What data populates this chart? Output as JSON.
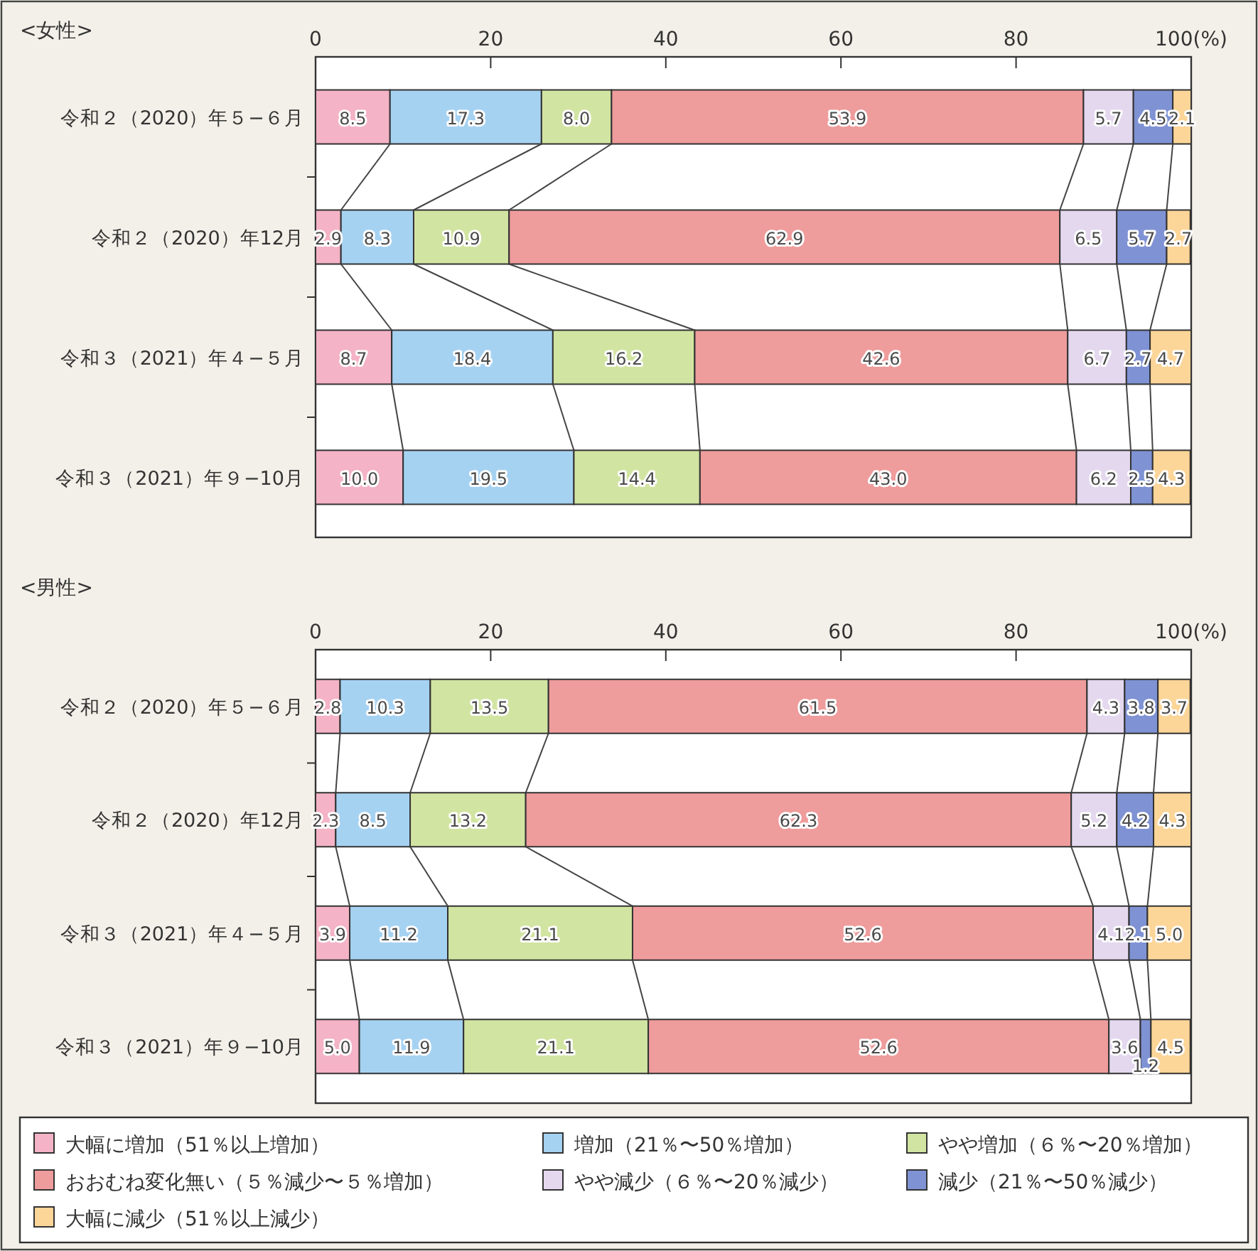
{
  "chart_data": [
    {
      "type": "bar",
      "orientation": "horizontal",
      "stacked": true,
      "title": "<女性>",
      "categories": [
        "令和２（2020）年５−６月",
        "令和２（2020）年12月",
        "令和３（2021）年４−５月",
        "令和３（2021）年９−10月"
      ],
      "xlim": [
        0,
        100
      ],
      "xticks": [
        0,
        20,
        40,
        60,
        80,
        {
          "value": 100,
          "label": "100(%)"
        }
      ],
      "legend": "bottom",
      "series": [
        {
          "name": "大幅に増加（51％以上増加）",
          "color": "#f4b3c6",
          "values": [
            8.5,
            2.9,
            8.7,
            10.0
          ],
          "value_labels": [
            "8.5",
            "2.9",
            "8.7",
            "10.0"
          ]
        },
        {
          "name": "増加（21％〜50％増加）",
          "color": "#a6d2f2",
          "values": [
            17.3,
            8.3,
            18.4,
            19.5
          ],
          "value_labels": [
            "17.3",
            "8.3",
            "18.4",
            "19.5"
          ]
        },
        {
          "name": "やや増加（６％〜20％増加）",
          "color": "#d2e4a2",
          "values": [
            8.0,
            10.9,
            16.2,
            14.4
          ],
          "value_labels": [
            "8.0",
            "10.9",
            "16.2",
            "14.4"
          ]
        },
        {
          "name": "おおむね変化無い（５％減少〜５％増加）",
          "color": "#ef9c9c",
          "values": [
            53.9,
            62.9,
            42.6,
            43.0
          ],
          "value_labels": [
            "53.9",
            "62.9",
            "42.6",
            "43.0"
          ]
        },
        {
          "name": "やや減少（６％〜20％減少）",
          "color": "#e4d8ef",
          "values": [
            5.7,
            6.5,
            6.7,
            6.2
          ],
          "value_labels": [
            "5.7",
            "6.5",
            "6.7",
            "6.2"
          ]
        },
        {
          "name": "減少（21％〜50％減少）",
          "color": "#7f92d4",
          "values": [
            4.5,
            5.7,
            2.7,
            2.5
          ],
          "value_labels": [
            "4.5",
            "5.7",
            "2.7",
            "2.5"
          ]
        },
        {
          "name": "大幅に減少（51％以上減少）",
          "color": "#fcd598",
          "values": [
            2.1,
            2.7,
            4.7,
            4.3
          ],
          "value_labels": [
            "2.1",
            "2.7",
            "4.7",
            "4.3"
          ]
        }
      ]
    },
    {
      "type": "bar",
      "orientation": "horizontal",
      "stacked": true,
      "title": "<男性>",
      "categories": [
        "令和２（2020）年５−６月",
        "令和２（2020）年12月",
        "令和３（2021）年４−５月",
        "令和３（2021）年９−10月"
      ],
      "xlim": [
        0,
        100
      ],
      "xticks": [
        0,
        20,
        40,
        60,
        80,
        {
          "value": 100,
          "label": "100(%)"
        }
      ],
      "series": [
        {
          "color": "#f4b3c6",
          "values": [
            2.8,
            2.3,
            3.9,
            5.0
          ],
          "value_labels": [
            "2.8",
            "2.3",
            "3.9",
            "5.0"
          ]
        },
        {
          "color": "#a6d2f2",
          "values": [
            10.3,
            8.5,
            11.2,
            11.9
          ],
          "value_labels": [
            "10.3",
            "8.5",
            "11.2",
            "11.9"
          ]
        },
        {
          "color": "#d2e4a2",
          "values": [
            13.5,
            13.2,
            21.1,
            21.1
          ],
          "value_labels": [
            "13.5",
            "13.2",
            "21.1",
            "21.1"
          ]
        },
        {
          "color": "#ef9c9c",
          "values": [
            61.5,
            62.3,
            52.6,
            52.6
          ],
          "value_labels": [
            "61.5",
            "62.3",
            "52.6",
            "52.6"
          ]
        },
        {
          "color": "#e4d8ef",
          "values": [
            4.3,
            5.2,
            4.1,
            3.6
          ],
          "value_labels": [
            "4.3",
            "5.2",
            "4.1",
            "3.6"
          ]
        },
        {
          "color": "#7f92d4",
          "values": [
            3.8,
            4.2,
            2.1,
            1.2
          ],
          "value_labels": [
            "3.8",
            "4.2",
            "2.1",
            "1.2"
          ]
        },
        {
          "color": "#fcd598",
          "values": [
            3.7,
            4.3,
            5.0,
            4.5
          ],
          "value_labels": [
            "3.7",
            "4.3",
            "5.0",
            "4.5"
          ]
        }
      ]
    }
  ]
}
